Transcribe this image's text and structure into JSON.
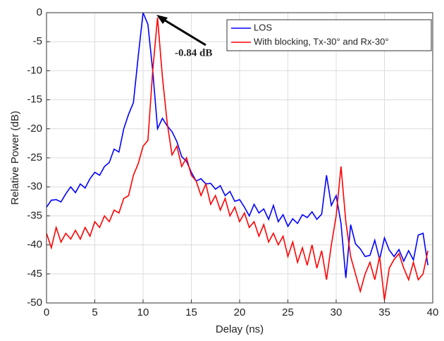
{
  "chart_data": {
    "type": "line",
    "xlabel": "Delay (ns)",
    "ylabel": "Relative Power (dB)",
    "x": [
      0,
      0.5,
      1,
      1.5,
      2,
      2.5,
      3,
      3.5,
      4,
      4.5,
      5,
      5.5,
      6,
      6.5,
      7,
      7.5,
      8,
      8.5,
      9,
      9.5,
      10,
      10.5,
      11,
      11.5,
      12,
      12.5,
      13,
      13.5,
      14,
      14.5,
      15,
      15.5,
      16,
      16.5,
      17,
      17.5,
      18,
      18.5,
      19,
      19.5,
      20,
      20.5,
      21,
      21.5,
      22,
      22.5,
      23,
      23.5,
      24,
      24.5,
      25,
      25.5,
      26,
      26.5,
      27,
      27.5,
      28,
      28.5,
      29,
      29.5,
      30,
      30.5,
      31,
      31.5,
      32,
      32.5,
      33,
      33.5,
      34,
      34.5,
      35,
      35.5,
      36,
      36.5,
      37,
      37.5,
      38,
      38.5,
      39,
      39.5
    ],
    "series": [
      {
        "name": "LOS",
        "color": "#0000ff",
        "values": [
          -33.5,
          -32.3,
          -32.2,
          -32.6,
          -31.2,
          -30,
          -31,
          -29.5,
          -30.2,
          -28.6,
          -27.5,
          -28,
          -26.5,
          -25.8,
          -23.5,
          -24,
          -20,
          -17.5,
          -15.5,
          -7.5,
          0,
          -2,
          -10,
          -20,
          -18.2,
          -19.5,
          -20.5,
          -22.2,
          -24.8,
          -25.6,
          -27.5,
          -29,
          -28.6,
          -29.5,
          -29.4,
          -30.4,
          -29.8,
          -31.5,
          -30.8,
          -32.5,
          -32.2,
          -33.5,
          -35,
          -33,
          -34.5,
          -33.8,
          -35.6,
          -33.2,
          -36,
          -34.8,
          -36.8,
          -35.5,
          -36.3,
          -34.8,
          -35.3,
          -34.3,
          -35.6,
          -34.7,
          -28,
          -33.2,
          -31.5,
          -36.3,
          -45.7,
          -36.5,
          -39.8,
          -40.7,
          -42,
          -41.8,
          -39.2,
          -42.5,
          -38.8,
          -40.9,
          -42,
          -40.8,
          -42.8,
          -41,
          -42.6,
          -38.3,
          -38,
          -43.5
        ]
      },
      {
        "name": "With blocking, Tx-30° and Rx-30°",
        "color": "#ff0000",
        "values": [
          -38,
          -40.5,
          -37,
          -39.5,
          -38,
          -39,
          -37.5,
          -39,
          -37,
          -38.5,
          -36,
          -37,
          -35,
          -36,
          -34,
          -34.5,
          -32,
          -31.5,
          -28,
          -26,
          -23,
          -22,
          -10,
          -0.84,
          -11,
          -19,
          -24.5,
          -23,
          -26.5,
          -25,
          -28,
          -29,
          -31.5,
          -29.5,
          -33,
          -31.5,
          -34,
          -32,
          -35,
          -33.5,
          -36,
          -34.5,
          -37,
          -36,
          -38.5,
          -36.5,
          -39.5,
          -38,
          -40,
          -38.5,
          -42,
          -39.5,
          -43,
          -40.5,
          -43.5,
          -40,
          -44,
          -41,
          -46,
          -40,
          -35,
          -26.5,
          -36,
          -42,
          -45,
          -48,
          -45,
          -43,
          -46,
          -42,
          -49.5,
          -44,
          -42.5,
          -41.5,
          -44,
          -46,
          -43,
          -46,
          -45,
          -41
        ]
      }
    ],
    "annotation": "-0.84 dB",
    "xlim": [
      0,
      40
    ],
    "xticks": [
      0,
      5,
      10,
      15,
      20,
      25,
      30,
      35,
      40
    ],
    "ylim": [
      -50,
      0
    ],
    "yticks": [
      0,
      -5,
      -10,
      -15,
      -20,
      -25,
      -30,
      -35,
      -40,
      -45,
      -50
    ],
    "grid": true,
    "legend": "upper right"
  }
}
